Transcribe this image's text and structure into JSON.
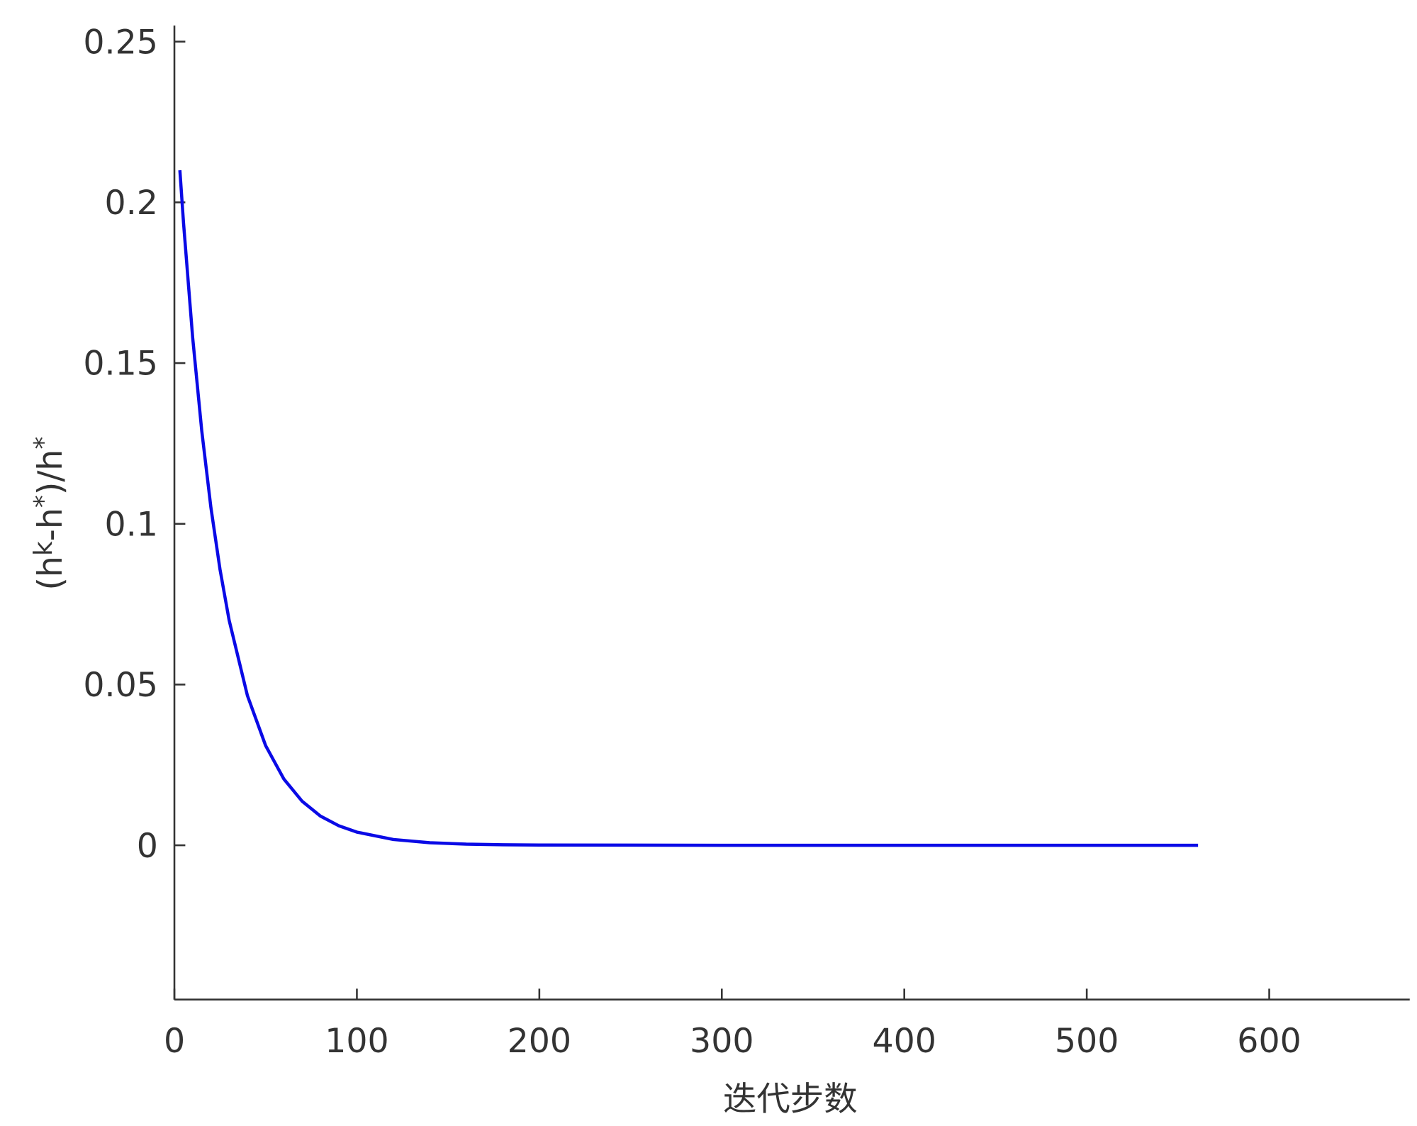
{
  "chart_data": {
    "type": "line",
    "ylabel": [
      "(h",
      "k",
      "-h",
      "*",
      ")/h",
      "*"
    ],
    "xlabel": "迭代步数",
    "x": [
      3,
      5,
      10,
      15,
      20,
      25,
      30,
      40,
      50,
      60,
      70,
      80,
      90,
      100,
      120,
      140,
      160,
      180,
      200,
      250,
      300,
      400,
      500,
      561
    ],
    "series": [
      {
        "color": "#0a0ae6",
        "values": [
          0.21,
          0.1936,
          0.158,
          0.1289,
          0.1051,
          0.0858,
          0.07,
          0.0466,
          0.031,
          0.0206,
          0.0137,
          0.0091,
          0.0061,
          0.0041,
          0.0018,
          0.0008,
          0.00035,
          0.00016,
          7e-05,
          4e-05,
          0,
          0,
          0,
          0
        ]
      }
    ],
    "xlim": [
      0,
      677
    ],
    "ylim": [
      -0.048,
      0.255
    ],
    "xticks": [
      0,
      100,
      200,
      300,
      400,
      500,
      600
    ],
    "yticks": [
      0,
      0.05,
      0.1,
      0.15,
      0.2,
      0.25
    ]
  }
}
